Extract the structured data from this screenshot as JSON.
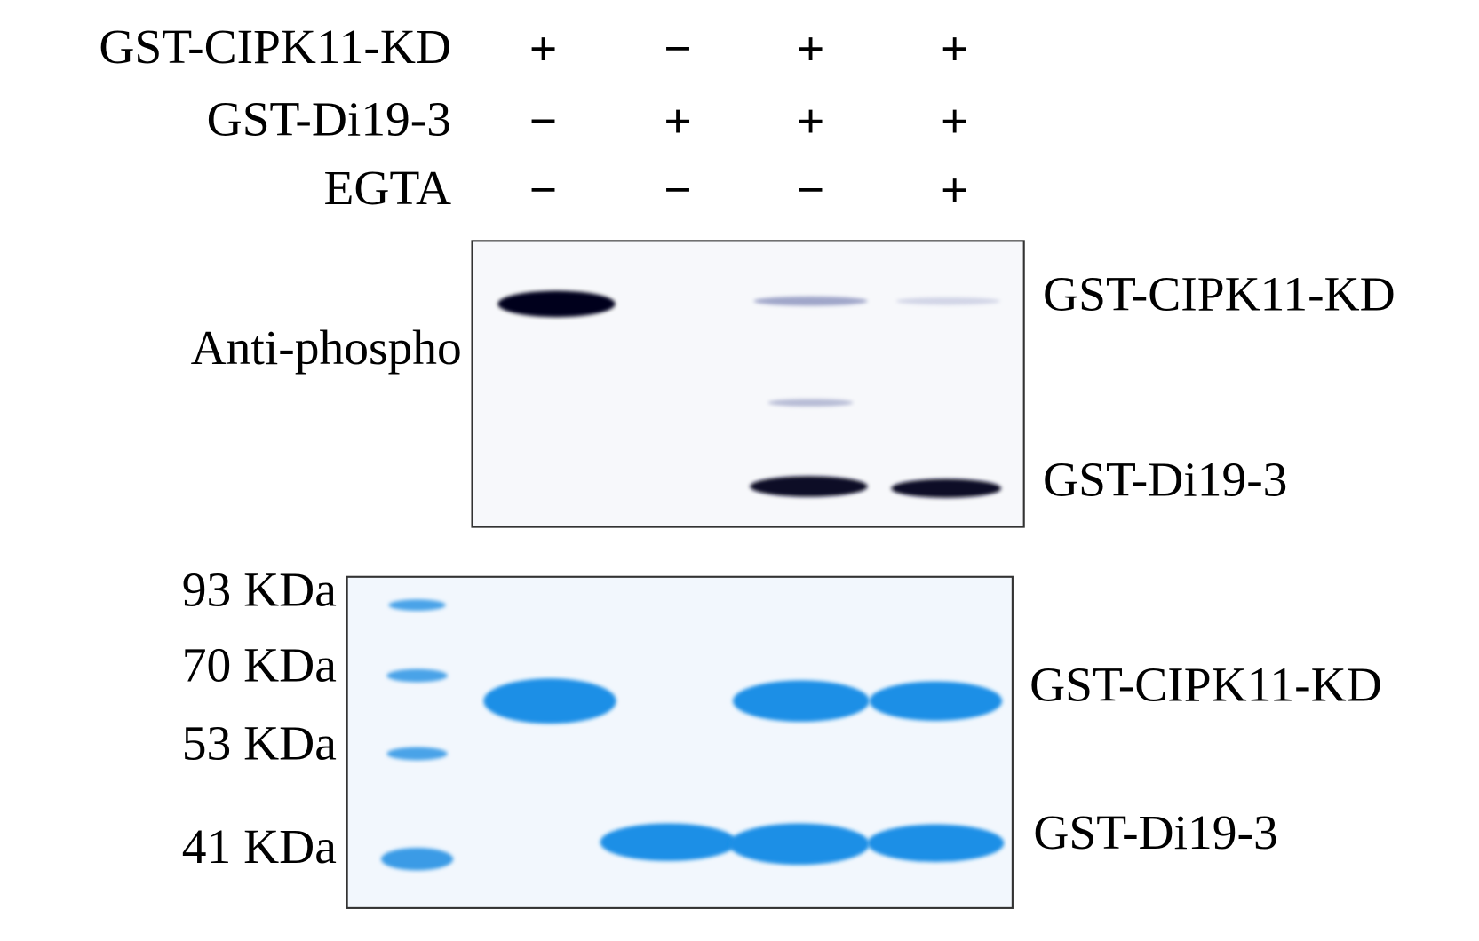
{
  "conditions": [
    {
      "label": "GST-CIPK11-KD",
      "signs": [
        "+",
        "−",
        "+",
        "+"
      ]
    },
    {
      "label": "GST-Di19-3",
      "signs": [
        "−",
        "+",
        "+",
        "+"
      ]
    },
    {
      "label": "EGTA",
      "signs": [
        "−",
        "−",
        "−",
        "+"
      ]
    }
  ],
  "blot": {
    "label": "Anti-phospho",
    "bands": [
      "GST-CIPK11-KD",
      "GST-Di19-3"
    ]
  },
  "gel": {
    "markers": [
      "93 KDa",
      "70 KDa",
      "53 KDa",
      "41 KDa"
    ],
    "bands": [
      "GST-CIPK11-KD",
      "GST-Di19-3"
    ]
  }
}
